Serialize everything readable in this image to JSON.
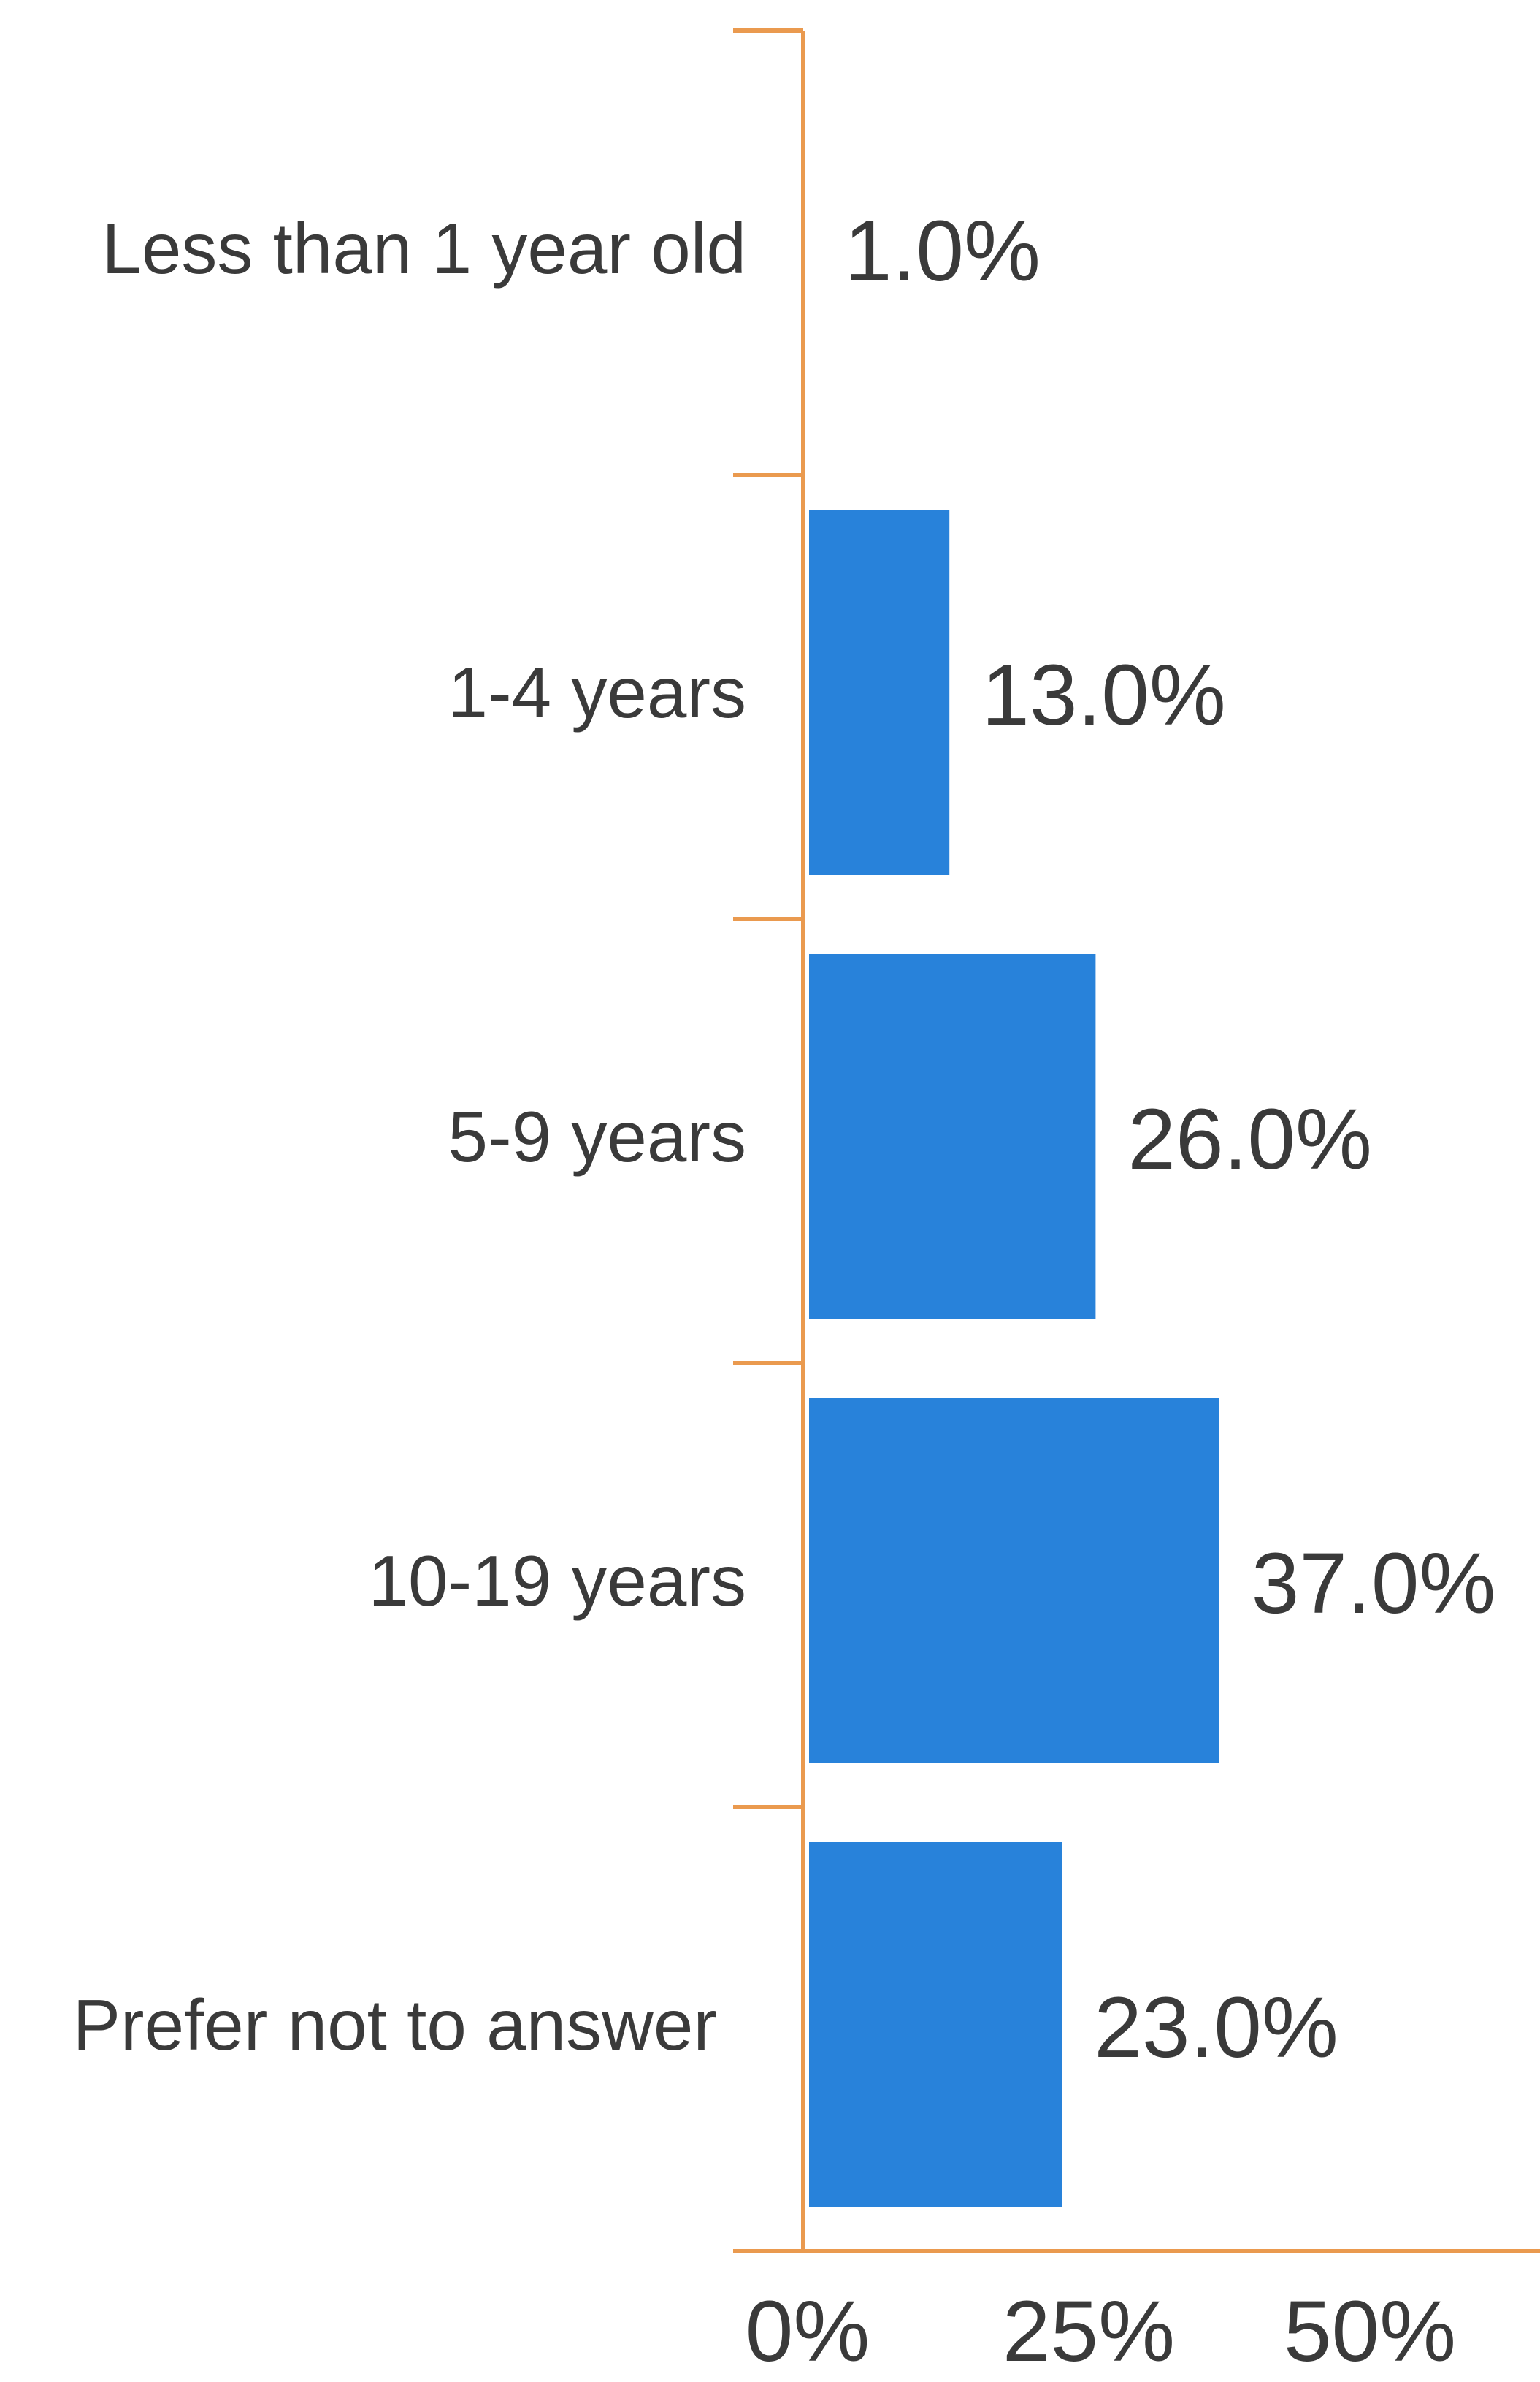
{
  "chart_data": {
    "type": "bar",
    "orientation": "horizontal",
    "categories": [
      "Less than 1 year old",
      "1-4 years",
      "5-9 years",
      "10-19 years",
      "Prefer not to answer"
    ],
    "values": [
      1.0,
      13.0,
      26.0,
      37.0,
      23.0
    ],
    "data_labels": [
      "1.0%",
      "13.0%",
      "26.0%",
      "37.0%",
      "23.0%"
    ],
    "xticks": [
      0,
      25,
      50
    ],
    "xtick_labels": [
      "0%",
      "25%",
      "50%"
    ],
    "xlim": [
      0,
      68
    ],
    "title": "",
    "xlabel": "",
    "ylabel": "",
    "grid": false,
    "legend": "none",
    "bar_color": "#2882DA",
    "axis_color": "#EA9A4F",
    "text_color": "#3a3a3a"
  }
}
